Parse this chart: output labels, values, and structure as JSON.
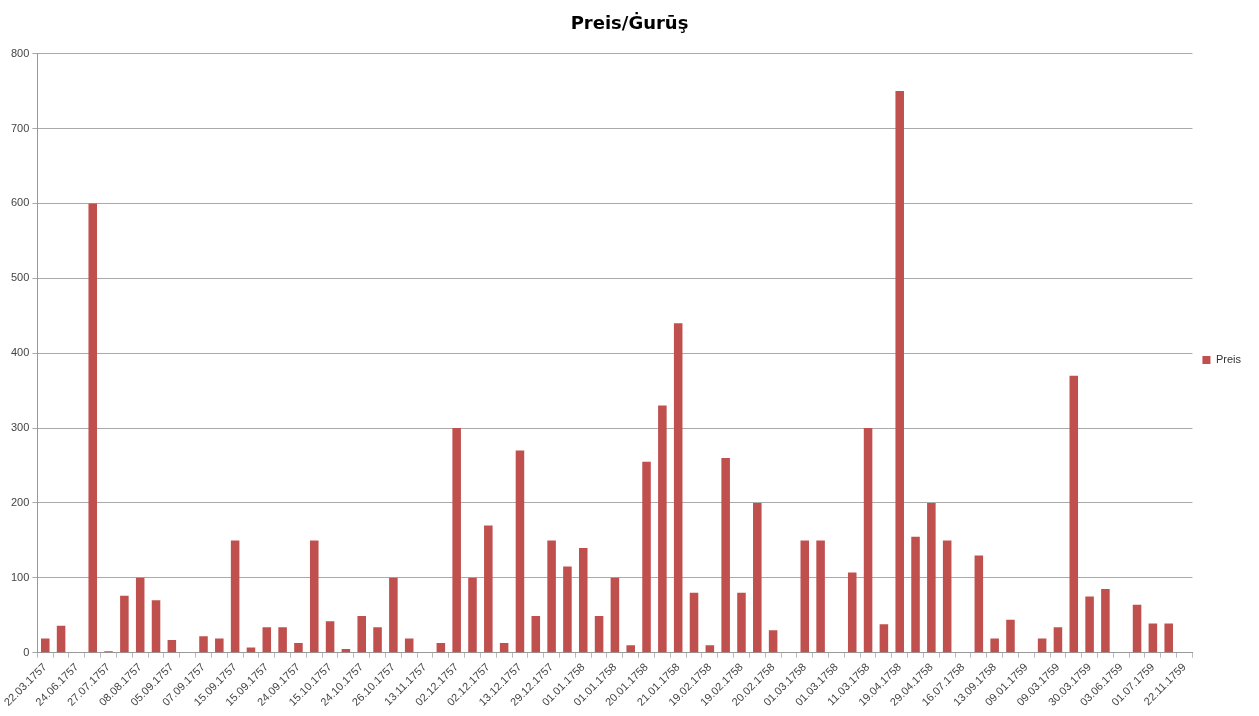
{
  "chart_data": {
    "type": "bar",
    "title": "Preis/Ġurūş",
    "categories": [
      "22.03.1757",
      null,
      "24.06.1757",
      null,
      "27.07.1757",
      null,
      "08.08.1757",
      null,
      "05.09.1757",
      null,
      "07.09.1757",
      null,
      "15.09.1757",
      null,
      "15.09.1757",
      null,
      "24.09.1757",
      null,
      "15.10.1757",
      null,
      "24.10.1757",
      null,
      "26.10.1757",
      null,
      "13.11.1757",
      null,
      "02.12.1757",
      null,
      "02.12.1757",
      null,
      "13.12.1757",
      null,
      "29.12.1757",
      null,
      "01.01.1758",
      null,
      "01.01.1758",
      null,
      "20.01.1758",
      null,
      "21.01.1758",
      null,
      "19.02.1758",
      null,
      "19.02.1758",
      null,
      "20.02.1758",
      null,
      "01.03.1758",
      null,
      "01.03.1758",
      null,
      "11.03.1758",
      null,
      "19.04.1758",
      null,
      "29.04.1758",
      null,
      "16.07.1758",
      null,
      "13.09.1758",
      null,
      "09.01.1759",
      null,
      "09.03.1759",
      null,
      "30.03.1759",
      null,
      "03.06.1759",
      null,
      "01.07.1759",
      null,
      "22.11.1759"
    ],
    "series": [
      {
        "name": "Preis",
        "color": "#c0504d",
        "values": [
          19,
          36,
          null,
          600,
          2,
          76,
          100,
          70,
          17,
          null,
          22,
          19,
          150,
          7,
          34,
          34,
          13,
          150,
          42,
          5,
          49,
          34,
          100,
          19,
          null,
          13,
          300,
          100,
          170,
          13,
          270,
          49,
          150,
          115,
          140,
          49,
          100,
          10,
          255,
          330,
          440,
          80,
          10,
          260,
          80,
          200,
          30,
          null,
          150,
          150,
          null,
          107,
          300,
          38,
          750,
          155,
          200,
          150,
          null,
          130,
          19,
          44,
          null,
          19,
          34,
          370,
          75,
          85,
          null,
          64,
          39,
          39,
          null
        ]
      }
    ],
    "ylim": [
      0,
      800
    ],
    "yticks": [
      0,
      100,
      200,
      300,
      400,
      500,
      600,
      700,
      800
    ],
    "grid": "y",
    "legend": "right"
  }
}
